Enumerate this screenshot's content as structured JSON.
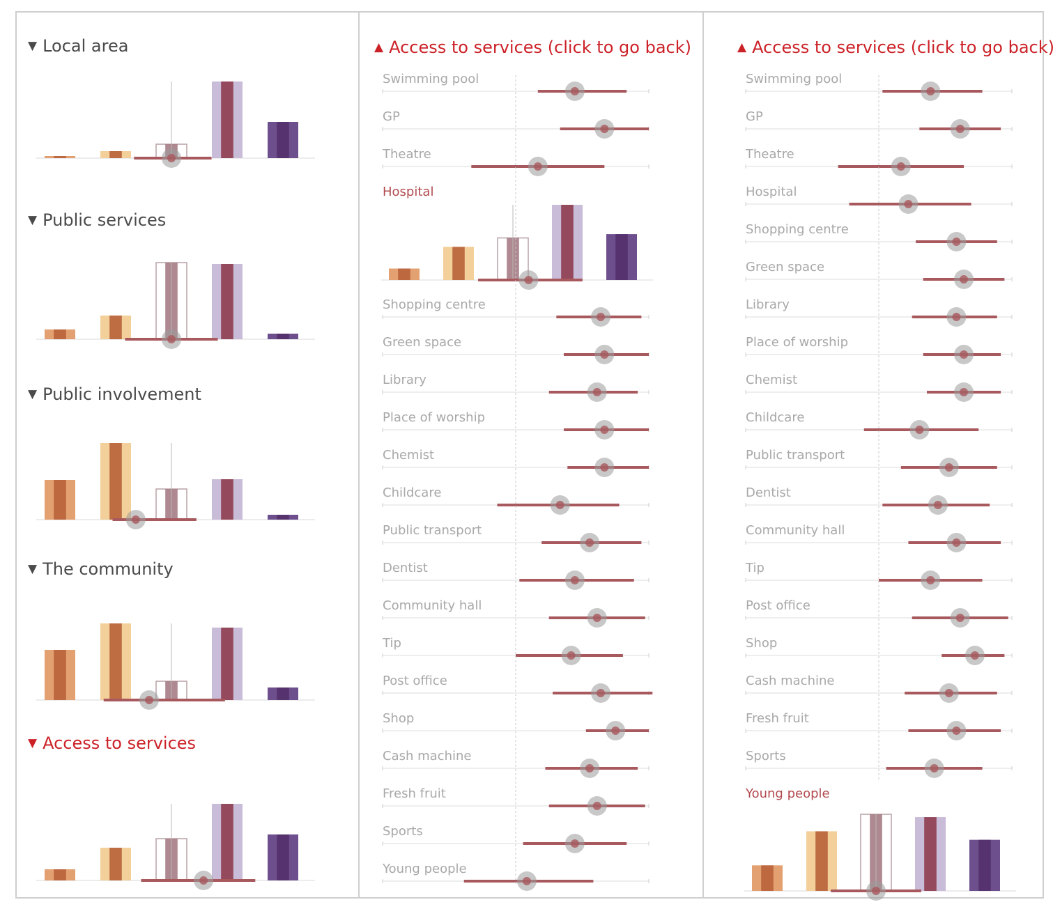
{
  "colors": {
    "title_dark": "#4a4a4a",
    "title_red": "#cc2127",
    "label_gray": "#a8a8a8",
    "label_selected": "#b24a4e",
    "range_bar": "#a8595e",
    "marker": "#9a9a9a",
    "orange_dark": "#b8623a",
    "orange_light": "#e3a070",
    "peach": "#f3cf9a",
    "pink": "#c78f86",
    "mauve": "#a67c85",
    "maroon": "#8e3d4f",
    "lavender": "#c9bcd8",
    "purple": "#6e4f8e",
    "purple_dark": "#53306b"
  },
  "left_panel": {
    "sections": [
      {
        "title": "Local area",
        "state": "collapsed",
        "icon": "triangle-down-icon"
      },
      {
        "title": "Public services",
        "state": "collapsed",
        "icon": "triangle-down-icon"
      },
      {
        "title": "Public involvement",
        "state": "collapsed",
        "icon": "triangle-down-icon"
      },
      {
        "title": "The community",
        "state": "collapsed",
        "icon": "triangle-down-icon"
      },
      {
        "title": "Access to services",
        "state": "selected",
        "icon": "triangle-down-icon"
      }
    ]
  },
  "middle_panel": {
    "title": "Access to services (click to go back)",
    "icon": "triangle-up-icon",
    "selected_item": "Hospital"
  },
  "right_panel": {
    "title": "Access to services (click to go back)",
    "icon": "triangle-up-icon",
    "selected_item": "Young people"
  },
  "chart_data": [
    {
      "type": "bar",
      "id": "local-area",
      "title": "Local area",
      "categories": [
        "group-1",
        "group-2",
        "group-3",
        "group-4",
        "group-5"
      ],
      "values": [
        3,
        10,
        20,
        110,
        52
      ],
      "mean_marker": 0,
      "range": [
        -42,
        45
      ],
      "ylim": [
        0,
        110
      ]
    },
    {
      "type": "bar",
      "id": "public-services",
      "title": "Public services",
      "categories": [
        "group-1",
        "group-2",
        "group-3",
        "group-4",
        "group-5"
      ],
      "values": [
        14,
        34,
        110,
        108,
        8
      ],
      "mean_marker": 0,
      "range": [
        -52,
        52
      ],
      "ylim": [
        0,
        110
      ]
    },
    {
      "type": "bar",
      "id": "public-involvement",
      "title": "Public involvement",
      "categories": [
        "group-1",
        "group-2",
        "group-3",
        "group-4",
        "group-5"
      ],
      "values": [
        57,
        110,
        44,
        58,
        7
      ],
      "mean_marker": -40,
      "range": [
        -66,
        28
      ],
      "ylim": [
        0,
        110
      ]
    },
    {
      "type": "bar",
      "id": "the-community",
      "title": "The community",
      "categories": [
        "group-1",
        "group-2",
        "group-3",
        "group-4",
        "group-5"
      ],
      "values": [
        72,
        110,
        27,
        104,
        18
      ],
      "mean_marker": -25,
      "range": [
        -76,
        60
      ],
      "ylim": [
        0,
        110
      ]
    },
    {
      "type": "bar",
      "id": "access-to-services",
      "title": "Access to services",
      "categories": [
        "group-1",
        "group-2",
        "group-3",
        "group-4",
        "group-5"
      ],
      "values": [
        16,
        47,
        60,
        110,
        66
      ],
      "mean_marker": 36,
      "range": [
        -34,
        94
      ],
      "ylim": [
        0,
        110
      ]
    },
    {
      "type": "scatter",
      "id": "access-to-services-detail-hospital",
      "title": "Access to services (click to go back)",
      "items": [
        {
          "label": "Swimming pool",
          "low": 0.6,
          "mid": 1.6,
          "high": 3.0
        },
        {
          "label": "GP",
          "low": 1.2,
          "mid": 2.4,
          "high": 3.6
        },
        {
          "label": "Theatre",
          "low": -1.2,
          "mid": 0.6,
          "high": 2.4
        },
        {
          "label": "Hospital",
          "expanded": true
        },
        {
          "label": "Shopping centre",
          "low": 1.1,
          "mid": 2.3,
          "high": 3.4
        },
        {
          "label": "Green space",
          "low": 1.3,
          "mid": 2.4,
          "high": 3.6
        },
        {
          "label": "Library",
          "low": 0.9,
          "mid": 2.2,
          "high": 3.3
        },
        {
          "label": "Place of worship",
          "low": 1.3,
          "mid": 2.4,
          "high": 3.6
        },
        {
          "label": "Chemist",
          "low": 1.4,
          "mid": 2.4,
          "high": 3.6
        },
        {
          "label": "Childcare",
          "low": -0.5,
          "mid": 1.2,
          "high": 2.8
        },
        {
          "label": "Public transport",
          "low": 0.7,
          "mid": 2.0,
          "high": 3.4
        },
        {
          "label": "Dentist",
          "low": 0.1,
          "mid": 1.6,
          "high": 3.2
        },
        {
          "label": "Community hall",
          "low": 0.9,
          "mid": 2.2,
          "high": 3.5
        },
        {
          "label": "Tip",
          "low": 0.0,
          "mid": 1.5,
          "high": 2.9
        },
        {
          "label": "Post office",
          "low": 1.0,
          "mid": 2.3,
          "high": 3.7
        },
        {
          "label": "Shop",
          "low": 1.9,
          "mid": 2.7,
          "high": 3.6
        },
        {
          "label": "Cash machine",
          "low": 0.8,
          "mid": 2.0,
          "high": 3.3
        },
        {
          "label": "Fresh fruit",
          "low": 0.9,
          "mid": 2.2,
          "high": 3.5
        },
        {
          "label": "Sports",
          "low": 0.2,
          "mid": 1.6,
          "high": 3.0
        },
        {
          "label": "Young people",
          "low": -1.4,
          "mid": 0.3,
          "high": 2.1
        }
      ],
      "xlim": [
        -3.6,
        3.6
      ],
      "expanded_bars": {
        "values": [
          18,
          52,
          66,
          118,
          72
        ],
        "mean_marker": 18,
        "range": [
          -40,
          80
        ],
        "ylim": [
          0,
          118
        ]
      }
    },
    {
      "type": "scatter",
      "id": "access-to-services-detail-young-people",
      "title": "Access to services (click to go back)",
      "items": [
        {
          "label": "Swimming pool",
          "low": 0.1,
          "mid": 1.4,
          "high": 2.8
        },
        {
          "label": "GP",
          "low": 1.1,
          "mid": 2.2,
          "high": 3.3
        },
        {
          "label": "Theatre",
          "low": -1.1,
          "mid": 0.6,
          "high": 2.3
        },
        {
          "label": "Hospital",
          "low": -0.8,
          "mid": 0.8,
          "high": 2.5
        },
        {
          "label": "Shopping centre",
          "low": 1.0,
          "mid": 2.1,
          "high": 3.2
        },
        {
          "label": "Green space",
          "low": 1.2,
          "mid": 2.3,
          "high": 3.4
        },
        {
          "label": "Library",
          "low": 0.9,
          "mid": 2.1,
          "high": 3.2
        },
        {
          "label": "Place of worship",
          "low": 1.2,
          "mid": 2.3,
          "high": 3.3
        },
        {
          "label": "Chemist",
          "low": 1.3,
          "mid": 2.3,
          "high": 3.3
        },
        {
          "label": "Childcare",
          "low": -0.4,
          "mid": 1.1,
          "high": 2.7
        },
        {
          "label": "Public transport",
          "low": 0.6,
          "mid": 1.9,
          "high": 3.2
        },
        {
          "label": "Dentist",
          "low": 0.1,
          "mid": 1.6,
          "high": 3.0
        },
        {
          "label": "Community hall",
          "low": 0.8,
          "mid": 2.1,
          "high": 3.3
        },
        {
          "label": "Tip",
          "low": 0.0,
          "mid": 1.4,
          "high": 2.8
        },
        {
          "label": "Post office",
          "low": 0.9,
          "mid": 2.2,
          "high": 3.5
        },
        {
          "label": "Shop",
          "low": 1.7,
          "mid": 2.6,
          "high": 3.4
        },
        {
          "label": "Cash machine",
          "low": 0.7,
          "mid": 1.9,
          "high": 3.2
        },
        {
          "label": "Fresh fruit",
          "low": 0.8,
          "mid": 2.1,
          "high": 3.3
        },
        {
          "label": "Sports",
          "low": 0.2,
          "mid": 1.5,
          "high": 2.8
        }
      ],
      "xlim": [
        -3.6,
        3.6
      ],
      "expanded_last": {
        "label": "Young people",
        "values": [
          36,
          84,
          108,
          104,
          72
        ],
        "mean_marker": 0,
        "range": [
          -52,
          52
        ],
        "ylim": [
          0,
          108
        ]
      }
    }
  ]
}
